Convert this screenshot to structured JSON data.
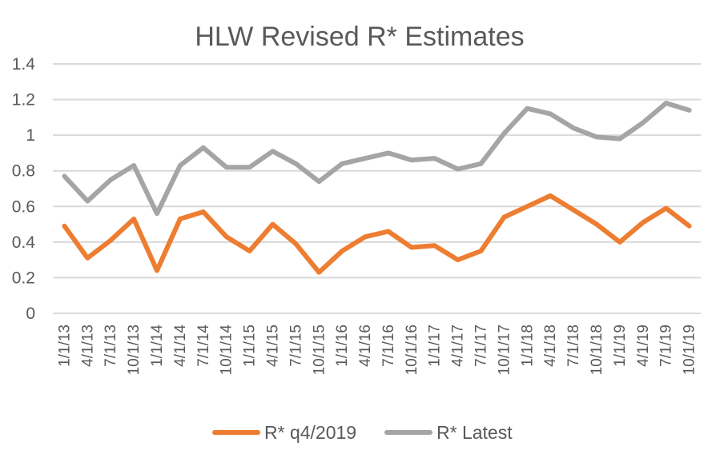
{
  "chart_data": {
    "type": "line",
    "title": "HLW Revised R* Estimates",
    "xlabel": "",
    "ylabel": "",
    "ylim": [
      0,
      1.4
    ],
    "yticks": [
      "0",
      "0.2",
      "0.4",
      "0.6",
      "0.8",
      "1",
      "1.2",
      "1.4"
    ],
    "ytick_values": [
      0,
      0.2,
      0.4,
      0.6,
      0.8,
      1.0,
      1.2,
      1.4
    ],
    "grid": true,
    "legend_position": "bottom",
    "categories": [
      "1/1/13",
      "4/1/13",
      "7/1/13",
      "10/1/13",
      "1/1/14",
      "4/1/14",
      "7/1/14",
      "10/1/14",
      "1/1/15",
      "4/1/15",
      "7/1/15",
      "10/1/15",
      "1/1/16",
      "4/1/16",
      "7/1/16",
      "10/1/16",
      "1/1/17",
      "4/1/17",
      "7/1/17",
      "10/1/17",
      "1/1/18",
      "4/1/18",
      "7/1/18",
      "10/1/18",
      "1/1/19",
      "4/1/19",
      "7/1/19",
      "10/1/19"
    ],
    "series": [
      {
        "name": "R* q4/2019",
        "color": "#ed7d31",
        "values": [
          0.49,
          0.31,
          0.41,
          0.53,
          0.24,
          0.53,
          0.57,
          0.43,
          0.35,
          0.5,
          0.39,
          0.23,
          0.35,
          0.43,
          0.46,
          0.37,
          0.38,
          0.3,
          0.35,
          0.54,
          0.6,
          0.66,
          0.58,
          0.5,
          0.4,
          0.51,
          0.59,
          0.49
        ]
      },
      {
        "name": "R* Latest",
        "color": "#a5a5a5",
        "values": [
          0.77,
          0.63,
          0.75,
          0.83,
          0.56,
          0.83,
          0.93,
          0.82,
          0.82,
          0.91,
          0.84,
          0.74,
          0.84,
          0.87,
          0.9,
          0.86,
          0.87,
          0.81,
          0.84,
          1.01,
          1.15,
          1.12,
          1.04,
          0.99,
          0.98,
          1.07,
          1.18,
          1.14
        ]
      }
    ]
  }
}
